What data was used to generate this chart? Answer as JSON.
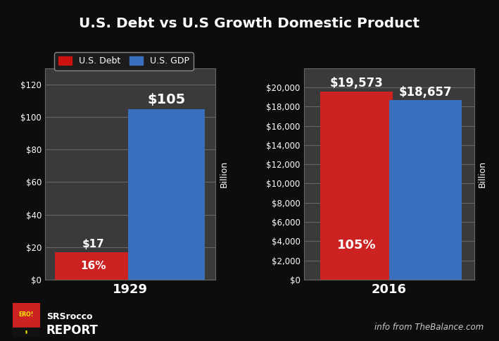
{
  "title": "U.S. Debt vs U.S Growth Domestic Product",
  "legend_labels": [
    "U.S. Debt",
    "U.S. GDP"
  ],
  "legend_colors": [
    "#cc1111",
    "#3a6fbd"
  ],
  "background_color": "#0d0d0d",
  "grid_color": "#666666",
  "text_color": "#ffffff",
  "left_chart": {
    "year": "1929",
    "debt_value": 17,
    "gdp_value": 105,
    "debt_label": "$17",
    "pct_label": "16%",
    "gdp_label": "$105",
    "ylim": [
      0,
      130
    ],
    "yticks": [
      0,
      20,
      40,
      60,
      80,
      100,
      120
    ],
    "ytick_labels": [
      "$0",
      "$20",
      "$40",
      "$60",
      "$80",
      "$100",
      "$120"
    ],
    "ylabel": "Billion",
    "bar_color_debt": "#cc2222",
    "bar_color_gdp": "#3a6fbd"
  },
  "right_chart": {
    "year": "2016",
    "debt_value": 19573,
    "gdp_value": 18657,
    "debt_label": "$19,573",
    "pct_label": "105%",
    "gdp_label": "$18,657",
    "ylim": [
      0,
      22000
    ],
    "yticks": [
      0,
      2000,
      4000,
      6000,
      8000,
      10000,
      12000,
      14000,
      16000,
      18000,
      20000
    ],
    "ytick_labels": [
      "$0",
      "$2,000",
      "$4,000",
      "$6,000",
      "$8,000",
      "$10,000",
      "$12,000",
      "$14,000",
      "$16,000",
      "$18,000",
      "$20,000"
    ],
    "ylabel": "Billion",
    "bar_color_debt": "#cc2222",
    "bar_color_gdp": "#3a6fbd"
  },
  "footer_left_line1": "SRSrocco",
  "footer_left_line2": "REPORT",
  "footer_right": "info from TheBalance.com"
}
